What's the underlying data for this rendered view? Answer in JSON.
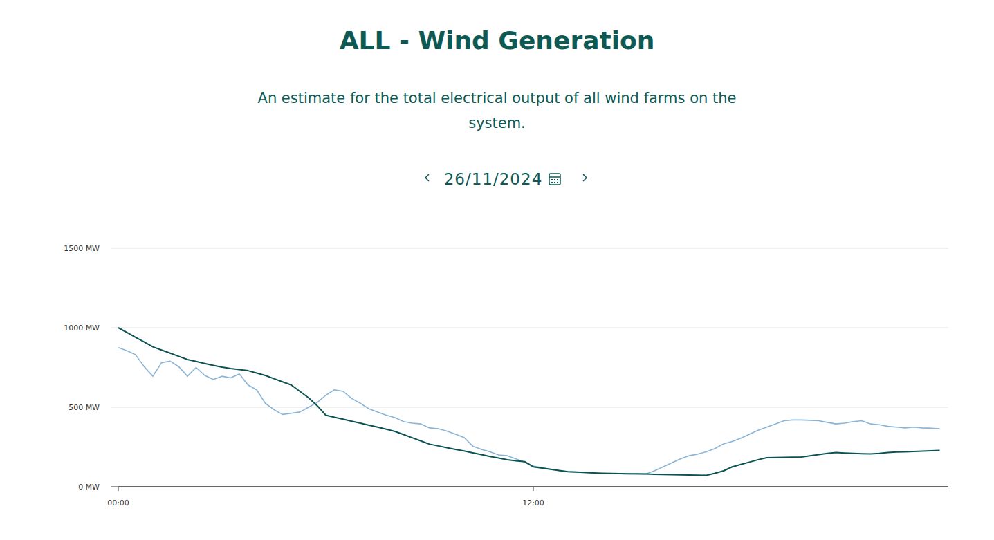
{
  "chart_data": {
    "type": "line",
    "title": "ALL - Wind Generation",
    "subtitle": "An estimate for the total electrical output of all wind farms on the system.",
    "date": "26/11/2024",
    "x": [
      0,
      0.25,
      0.5,
      0.75,
      1,
      1.25,
      1.5,
      1.75,
      2,
      2.25,
      2.5,
      2.75,
      3,
      3.25,
      3.5,
      3.75,
      4,
      4.25,
      4.5,
      4.75,
      5,
      5.25,
      5.5,
      5.75,
      6,
      6.25,
      6.5,
      6.75,
      7,
      7.25,
      7.5,
      7.75,
      8,
      8.25,
      8.5,
      8.75,
      9,
      9.25,
      9.5,
      9.75,
      10,
      10.25,
      10.5,
      10.75,
      11,
      11.25,
      11.5,
      11.75,
      12,
      12.25,
      12.5,
      12.75,
      13,
      13.25,
      13.5,
      13.75,
      14,
      14.25,
      14.5,
      14.75,
      15,
      15.25,
      15.5,
      15.75,
      16,
      16.25,
      16.5,
      16.75,
      17,
      17.25,
      17.5,
      17.75,
      18,
      18.25,
      18.5,
      18.75,
      19,
      19.25,
      19.5,
      19.75,
      20,
      20.25,
      20.5,
      20.75,
      21,
      21.25,
      21.5,
      21.75,
      22,
      22.25,
      22.5,
      22.75,
      23,
      23.25,
      23.5,
      23.75
    ],
    "series": [
      {
        "color": "#8ab4d6",
        "values": [
          875,
          855,
          830,
          755,
          695,
          780,
          790,
          755,
          695,
          750,
          700,
          675,
          695,
          685,
          710,
          640,
          610,
          525,
          485,
          455,
          462,
          470,
          500,
          530,
          575,
          610,
          600,
          555,
          525,
          490,
          470,
          450,
          435,
          410,
          400,
          395,
          370,
          365,
          350,
          330,
          310,
          255,
          235,
          220,
          200,
          195,
          175,
          155,
          130,
          120,
          110,
          100,
          95,
          92,
          88,
          85,
          84,
          83,
          82,
          81,
          80,
          80,
          100,
          125,
          150,
          175,
          195,
          205,
          220,
          240,
          270,
          285,
          305,
          330,
          355,
          375,
          395,
          415,
          420,
          420,
          418,
          415,
          405,
          395,
          400,
          410,
          415,
          395,
          390,
          380,
          375,
          370,
          375,
          370,
          368,
          365
        ]
      },
      {
        "color": "#0b5352",
        "values": [
          1000,
          970,
          940,
          910,
          880,
          860,
          840,
          820,
          800,
          788,
          775,
          763,
          752,
          743,
          737,
          730,
          715,
          700,
          680,
          660,
          640,
          600,
          560,
          510,
          450,
          437,
          425,
          412,
          400,
          387,
          375,
          362,
          348,
          328,
          308,
          288,
          268,
          257,
          246,
          235,
          225,
          213,
          202,
          190,
          180,
          170,
          163,
          158,
          125,
          117,
          110,
          102,
          95,
          92,
          90,
          87,
          85,
          84,
          83,
          82,
          81,
          80,
          78,
          77,
          76,
          75,
          74,
          73,
          72,
          85,
          100,
          125,
          140,
          155,
          170,
          183,
          184,
          185,
          186,
          187,
          195,
          202,
          210,
          215,
          212,
          210,
          208,
          207,
          210,
          215,
          218,
          220,
          222,
          224,
          226,
          228
        ]
      }
    ],
    "xlim": [
      0,
      24
    ],
    "xticks": [
      {
        "value": 0,
        "label": "00:00"
      },
      {
        "value": 12,
        "label": "12:00"
      }
    ],
    "ylim": [
      0,
      1500
    ],
    "yticks": [
      {
        "value": 0,
        "label": "0 MW"
      },
      {
        "value": 500,
        "label": "500 MW"
      },
      {
        "value": 1000,
        "label": "1000 MW"
      },
      {
        "value": 1500,
        "label": "1500 MW"
      }
    ],
    "grid": true
  }
}
